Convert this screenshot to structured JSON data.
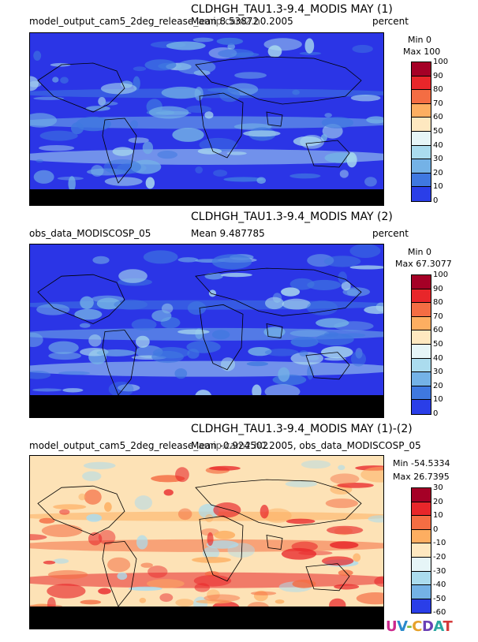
{
  "chart_data": [
    {
      "type": "heatmap",
      "title": "CLDHGH_TAU1.3-9.4_MODIS MAY (1)",
      "source": "model_output_cam5_2deg_release_amip.cam2.h0.2005",
      "mean": "Mean 8.53872",
      "units": "percent",
      "min": "Min 0",
      "max": "Max 100",
      "colorbar": {
        "ticks": [
          "100",
          "90",
          "80",
          "70",
          "60",
          "50",
          "40",
          "30",
          "20",
          "10",
          "0"
        ],
        "colors": [
          "#a50026",
          "#e8262a",
          "#f46d43",
          "#fdae61",
          "#fee8c0",
          "#e6f5f7",
          "#abdcee",
          "#74b2e6",
          "#3f78e0",
          "#2a3ee8"
        ]
      },
      "field": {
        "base": "#2b35e6",
        "features": [
          "#3f78e0",
          "#74b2e6",
          "#abdcee"
        ]
      }
    },
    {
      "type": "heatmap",
      "title": "CLDHGH_TAU1.3-9.4_MODIS MAY (2)",
      "source": "obs_data_MODISCOSP_05",
      "mean": "Mean 9.487785",
      "units": "percent",
      "min": "Min 0",
      "max": "Max 67.3077",
      "colorbar": {
        "ticks": [
          "100",
          "90",
          "80",
          "70",
          "60",
          "50",
          "40",
          "30",
          "20",
          "10",
          "0"
        ],
        "colors": [
          "#a50026",
          "#e8262a",
          "#f46d43",
          "#fdae61",
          "#fee8c0",
          "#e6f5f7",
          "#abdcee",
          "#74b2e6",
          "#3f78e0",
          "#2a3ee8"
        ]
      },
      "field": {
        "base": "#2b35e6",
        "features": [
          "#3f78e0",
          "#74b2e6",
          "#abdcee"
        ]
      }
    },
    {
      "type": "heatmap",
      "title": "CLDHGH_TAU1.3-9.4_MODIS MAY (1)-(2)",
      "source": "model_output_cam5_2deg_release_amip.cam2.h0.2005, obs_data_MODISCOSP_05",
      "mean": "Mean -0.924502",
      "units": "",
      "min": "Min -54.5334",
      "max": "Max 26.7395",
      "colorbar": {
        "ticks": [
          "30",
          "20",
          "10",
          "0",
          "-10",
          "-20",
          "-30",
          "-40",
          "-50",
          "-60"
        ],
        "colors": [
          "#a50026",
          "#e8262a",
          "#f46d43",
          "#fdae61",
          "#fee8c0",
          "#e6f5f7",
          "#abdcee",
          "#74b2e6",
          "#2a3ee8"
        ]
      },
      "field": {
        "base": "#fde2b6",
        "features": [
          "#fdae61",
          "#f46d43",
          "#e8262a",
          "#abdcee"
        ]
      }
    }
  ],
  "logo": {
    "text": "UV-CDAT",
    "colors": [
      "#cc2a8e",
      "#2a8acc",
      "#7bb93a",
      "#e6a12a",
      "#6a3fb5",
      "#2aa7a0",
      "#d43a3a"
    ]
  }
}
